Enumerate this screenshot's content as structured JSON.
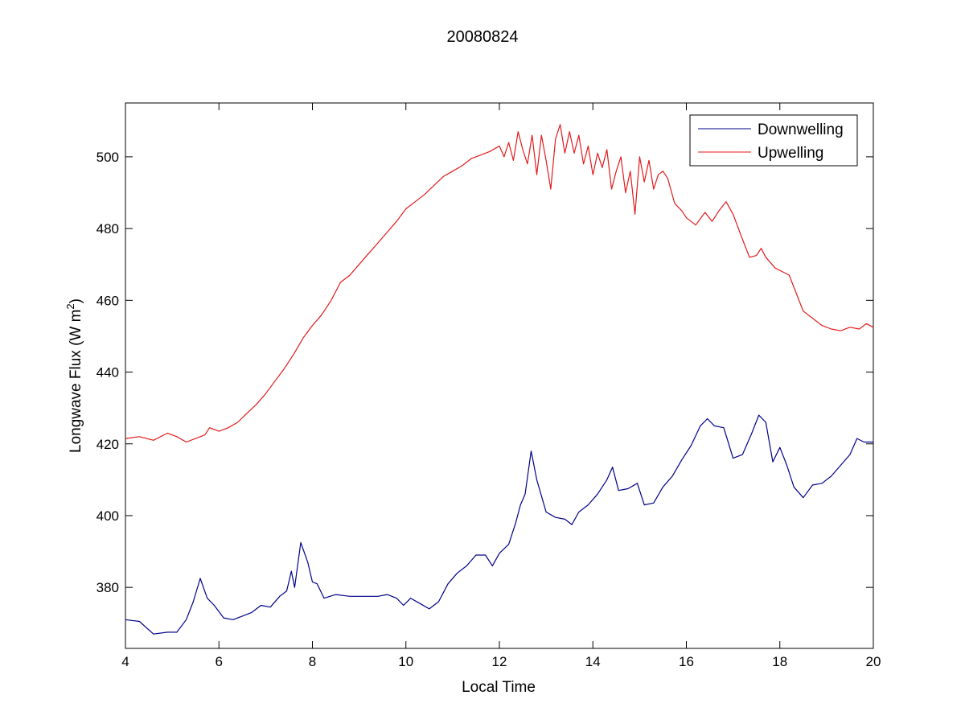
{
  "chart_data": {
    "type": "line",
    "title": "20080824",
    "xlabel": "Local Time",
    "ylabel_main": "Longwave Flux (W m",
    "ylabel_sup": "2",
    "ylabel_end": ")",
    "xlim": [
      4,
      20
    ],
    "ylim": [
      363,
      515
    ],
    "xticks": [
      4,
      6,
      8,
      10,
      12,
      14,
      16,
      18,
      20
    ],
    "yticks": [
      380,
      400,
      420,
      440,
      460,
      480,
      500
    ],
    "grid": false,
    "legend_position": "top-right",
    "series": [
      {
        "name": "Downwelling",
        "color": "#00008b",
        "points": [
          [
            4.0,
            371
          ],
          [
            4.3,
            370.5
          ],
          [
            4.6,
            367
          ],
          [
            4.9,
            367.5
          ],
          [
            5.1,
            367.5
          ],
          [
            5.3,
            371
          ],
          [
            5.45,
            376
          ],
          [
            5.6,
            382.5
          ],
          [
            5.75,
            377
          ],
          [
            5.9,
            375
          ],
          [
            6.1,
            371.5
          ],
          [
            6.3,
            371
          ],
          [
            6.5,
            372
          ],
          [
            6.7,
            373
          ],
          [
            6.9,
            375
          ],
          [
            7.1,
            374.5
          ],
          [
            7.3,
            377.5
          ],
          [
            7.45,
            379
          ],
          [
            7.55,
            384.5
          ],
          [
            7.62,
            380
          ],
          [
            7.75,
            392.5
          ],
          [
            7.9,
            387
          ],
          [
            8.0,
            381.5
          ],
          [
            8.1,
            381
          ],
          [
            8.25,
            377
          ],
          [
            8.5,
            378
          ],
          [
            8.8,
            377.5
          ],
          [
            9.1,
            377.5
          ],
          [
            9.4,
            377.5
          ],
          [
            9.6,
            378
          ],
          [
            9.8,
            377
          ],
          [
            9.95,
            375
          ],
          [
            10.1,
            377
          ],
          [
            10.3,
            375.5
          ],
          [
            10.5,
            374
          ],
          [
            10.7,
            376
          ],
          [
            10.9,
            381
          ],
          [
            11.1,
            384
          ],
          [
            11.3,
            386
          ],
          [
            11.5,
            389
          ],
          [
            11.7,
            389
          ],
          [
            11.85,
            386
          ],
          [
            12.0,
            389.5
          ],
          [
            12.2,
            392
          ],
          [
            12.35,
            398
          ],
          [
            12.45,
            403
          ],
          [
            12.55,
            406
          ],
          [
            12.68,
            418
          ],
          [
            12.8,
            410
          ],
          [
            13.0,
            401
          ],
          [
            13.2,
            399.5
          ],
          [
            13.4,
            399
          ],
          [
            13.55,
            397.5
          ],
          [
            13.7,
            401
          ],
          [
            13.9,
            403
          ],
          [
            14.1,
            406
          ],
          [
            14.3,
            410
          ],
          [
            14.42,
            413.5
          ],
          [
            14.55,
            407
          ],
          [
            14.75,
            407.5
          ],
          [
            14.95,
            409
          ],
          [
            15.1,
            403
          ],
          [
            15.3,
            403.5
          ],
          [
            15.5,
            408
          ],
          [
            15.7,
            411
          ],
          [
            15.9,
            415.5
          ],
          [
            16.1,
            419.5
          ],
          [
            16.3,
            425
          ],
          [
            16.45,
            427
          ],
          [
            16.6,
            425
          ],
          [
            16.8,
            424.5
          ],
          [
            17.0,
            416
          ],
          [
            17.2,
            417
          ],
          [
            17.4,
            423
          ],
          [
            17.55,
            428
          ],
          [
            17.7,
            426
          ],
          [
            17.85,
            415
          ],
          [
            18.0,
            419
          ],
          [
            18.15,
            414
          ],
          [
            18.3,
            408
          ],
          [
            18.5,
            405
          ],
          [
            18.7,
            408.5
          ],
          [
            18.9,
            409
          ],
          [
            19.1,
            411
          ],
          [
            19.3,
            414
          ],
          [
            19.5,
            417
          ],
          [
            19.65,
            421.5
          ],
          [
            19.8,
            420.5
          ],
          [
            20.0,
            420.5
          ]
        ]
      },
      {
        "name": "Upwelling",
        "color": "#e31a1c",
        "points": [
          [
            4.0,
            421.5
          ],
          [
            4.3,
            422
          ],
          [
            4.6,
            421
          ],
          [
            4.9,
            423
          ],
          [
            5.1,
            422
          ],
          [
            5.3,
            420.5
          ],
          [
            5.5,
            421.5
          ],
          [
            5.7,
            422.5
          ],
          [
            5.8,
            424.5
          ],
          [
            6.0,
            423.5
          ],
          [
            6.2,
            424.5
          ],
          [
            6.4,
            426
          ],
          [
            6.6,
            428.5
          ],
          [
            6.8,
            431
          ],
          [
            7.0,
            434
          ],
          [
            7.2,
            437.5
          ],
          [
            7.4,
            441
          ],
          [
            7.6,
            445
          ],
          [
            7.8,
            449.5
          ],
          [
            8.0,
            453
          ],
          [
            8.2,
            456
          ],
          [
            8.4,
            460
          ],
          [
            8.6,
            465
          ],
          [
            8.8,
            467
          ],
          [
            9.0,
            470
          ],
          [
            9.2,
            473
          ],
          [
            9.4,
            476
          ],
          [
            9.6,
            479
          ],
          [
            9.8,
            482
          ],
          [
            10.0,
            485.5
          ],
          [
            10.2,
            487.5
          ],
          [
            10.4,
            489.5
          ],
          [
            10.6,
            492
          ],
          [
            10.8,
            494.5
          ],
          [
            11.0,
            496
          ],
          [
            11.2,
            497.5
          ],
          [
            11.4,
            499.5
          ],
          [
            11.6,
            500.5
          ],
          [
            11.8,
            501.5
          ],
          [
            12.0,
            503
          ],
          [
            12.1,
            500
          ],
          [
            12.2,
            504
          ],
          [
            12.3,
            499
          ],
          [
            12.4,
            507
          ],
          [
            12.5,
            502
          ],
          [
            12.6,
            498
          ],
          [
            12.7,
            506
          ],
          [
            12.8,
            495
          ],
          [
            12.9,
            506
          ],
          [
            13.0,
            499
          ],
          [
            13.1,
            491
          ],
          [
            13.2,
            505
          ],
          [
            13.3,
            509
          ],
          [
            13.4,
            501
          ],
          [
            13.5,
            507
          ],
          [
            13.6,
            501
          ],
          [
            13.7,
            506
          ],
          [
            13.8,
            498
          ],
          [
            13.9,
            503
          ],
          [
            14.0,
            495
          ],
          [
            14.1,
            501
          ],
          [
            14.2,
            497
          ],
          [
            14.3,
            502
          ],
          [
            14.4,
            491
          ],
          [
            14.5,
            496
          ],
          [
            14.6,
            500
          ],
          [
            14.7,
            490
          ],
          [
            14.8,
            496
          ],
          [
            14.9,
            484
          ],
          [
            15.0,
            500
          ],
          [
            15.1,
            493
          ],
          [
            15.2,
            499
          ],
          [
            15.3,
            491
          ],
          [
            15.4,
            495
          ],
          [
            15.5,
            496
          ],
          [
            15.6,
            494
          ],
          [
            15.75,
            487
          ],
          [
            15.9,
            485
          ],
          [
            16.0,
            483
          ],
          [
            16.2,
            481
          ],
          [
            16.4,
            484.5
          ],
          [
            16.55,
            482
          ],
          [
            16.7,
            485
          ],
          [
            16.85,
            487.5
          ],
          [
            17.0,
            484
          ],
          [
            17.2,
            477
          ],
          [
            17.35,
            472
          ],
          [
            17.5,
            472.5
          ],
          [
            17.6,
            474.5
          ],
          [
            17.7,
            472
          ],
          [
            17.9,
            469
          ],
          [
            18.05,
            468
          ],
          [
            18.2,
            467
          ],
          [
            18.35,
            462
          ],
          [
            18.5,
            457
          ],
          [
            18.7,
            455
          ],
          [
            18.9,
            453
          ],
          [
            19.1,
            452
          ],
          [
            19.3,
            451.5
          ],
          [
            19.5,
            452.5
          ],
          [
            19.7,
            452
          ],
          [
            19.85,
            453.5
          ],
          [
            20.0,
            452.5
          ]
        ]
      }
    ]
  }
}
